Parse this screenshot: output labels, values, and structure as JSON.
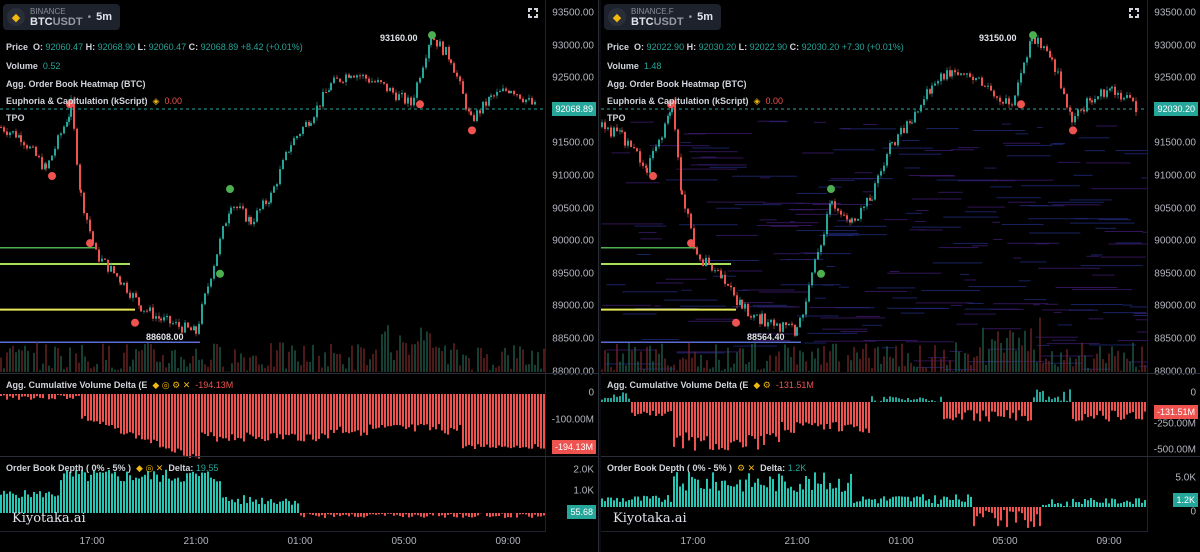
{
  "panels": [
    {
      "id": "left",
      "symbol": {
        "exchange": "BINANCE",
        "base": "BTC",
        "quote": "USDT",
        "timeframe": "5m"
      },
      "price_legend": {
        "label": "Price",
        "o": "92060.47",
        "h": "92068.90",
        "l": "92060.47",
        "c": "92068.89",
        "change": "+8.42",
        "pct": "(+0.01%)"
      },
      "volume": {
        "label": "Volume",
        "value": "0.52"
      },
      "heatmap_label": "Agg. Order Book Heatmap (BTC)",
      "euphoria": {
        "label": "Euphoria & Capitulation (kScript)",
        "value": "0.00"
      },
      "tpo_label": "TPO",
      "price_axis": [
        "93500.00",
        "93000.00",
        "92500.00",
        "92000.00",
        "91500.00",
        "91000.00",
        "90500.00",
        "90000.00",
        "89500.00",
        "89000.00",
        "88500.00",
        "88000.00"
      ],
      "last_price": "92068.89",
      "high_annotation": "93160.00",
      "low_annotation": "88608.00",
      "cvd": {
        "label": "Agg. Cumulative Volume Delta (E",
        "value": "-194.13M",
        "axis": [
          "0",
          "-100.00M"
        ],
        "last": "-194.13M"
      },
      "depth": {
        "label": "Order Book Depth ( 0% - 5% )",
        "delta_label": "Delta:",
        "delta": "19.55",
        "axis": [
          "2.0K",
          "1.0K",
          "0"
        ],
        "last": "55.68"
      },
      "brand": "Kiyotaka.ai",
      "time_axis": [
        "17:00",
        "21:00",
        "01:00",
        "05:00",
        "09:00"
      ]
    },
    {
      "id": "right",
      "symbol": {
        "exchange": "BINANCE.F",
        "base": "BTC",
        "quote": "USDT",
        "timeframe": "5m"
      },
      "price_legend": {
        "label": "Price",
        "o": "92022.90",
        "h": "92030.20",
        "l": "92022.90",
        "c": "92030.20",
        "change": "+7.30",
        "pct": "(+0.01%)"
      },
      "volume": {
        "label": "Volume",
        "value": "1.48"
      },
      "heatmap_label": "Agg. Order Book Heatmap (BTC)",
      "euphoria": {
        "label": "Euphoria & Capitulation (kScript)",
        "value": "0.00"
      },
      "tpo_label": "TPO",
      "price_axis": [
        "93500.00",
        "93000.00",
        "92500.00",
        "92000.00",
        "91500.00",
        "91000.00",
        "90500.00",
        "90000.00",
        "89500.00",
        "89000.00",
        "88500.00",
        "88000.00"
      ],
      "last_price": "92030.20",
      "high_annotation": "93150.00",
      "low_annotation": "88564.40",
      "cvd": {
        "label": "Agg. Cumulative Volume Delta (E",
        "value": "-131.51M",
        "axis": [
          "0",
          "-250.00M",
          "-500.00M"
        ],
        "last": "-131.51M"
      },
      "depth": {
        "label": "Order Book Depth ( 0% - 5% )",
        "delta_label": "Delta:",
        "delta": "1.2K",
        "axis": [
          "5.0K",
          "0"
        ],
        "last": "1.2K"
      },
      "brand": "Kiyotaka.ai",
      "time_axis": [
        "17:00",
        "21:00",
        "01:00",
        "05:00",
        "09:00"
      ]
    }
  ],
  "colors": {
    "up": "#26a69a",
    "down": "#ef5350",
    "accent": "#f0b90b",
    "background": "#000000"
  }
}
